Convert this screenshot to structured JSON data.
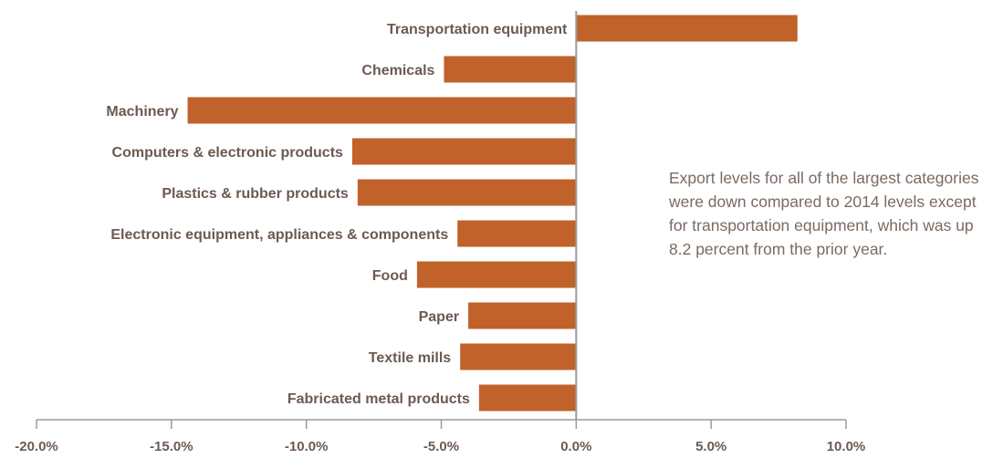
{
  "chart_data": {
    "type": "bar",
    "orientation": "horizontal",
    "categories": [
      "Transportation equipment",
      "Chemicals",
      "Machinery",
      "Computers & electronic products",
      "Plastics & rubber products",
      "Electronic equipment, appliances & components",
      "Food",
      "Paper",
      "Textile mills",
      "Fabricated metal products"
    ],
    "values": [
      8.2,
      -4.9,
      -14.4,
      -8.3,
      -8.1,
      -4.4,
      -5.9,
      -4.0,
      -4.3,
      -3.6
    ],
    "xlim": [
      -20,
      10
    ],
    "xticks": [
      -20,
      -15,
      -10,
      -5,
      0,
      5,
      10
    ],
    "xtick_labels": [
      "-20.0%",
      "-15.0%",
      "-10.0%",
      "-5.0%",
      "0.0%",
      "5.0%",
      "10.0%"
    ],
    "bar_color": "#c0622a",
    "axis_color": "#9a9a9a",
    "grid": false,
    "annotation": "Export levels for all of the largest categories were down compared to 2014 levels except for transportation equipment, which was up 8.2 percent from the prior year."
  }
}
